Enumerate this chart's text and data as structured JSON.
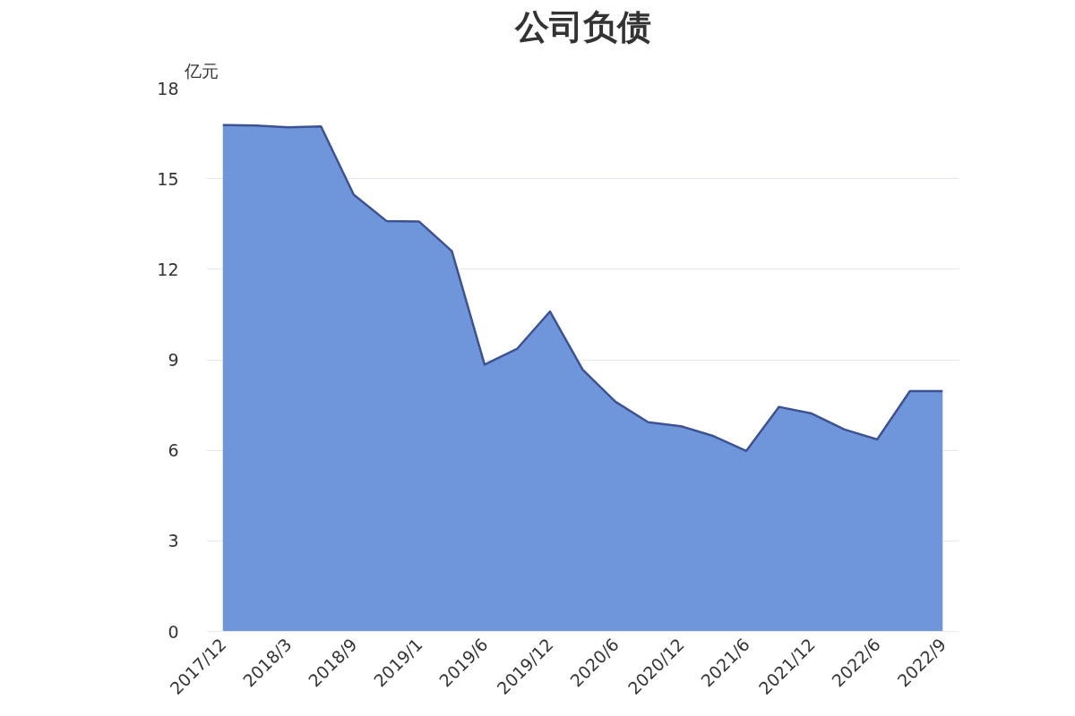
{
  "chart_data": {
    "type": "area",
    "title": "公司负债",
    "ylabel": "亿元",
    "categories": [
      "2017/12",
      null,
      "2018/3",
      null,
      "2018/9",
      null,
      "2019/1",
      null,
      "2019/6",
      null,
      "2019/12",
      null,
      "2020/6",
      null,
      "2020/12",
      null,
      "2021/6",
      null,
      "2021/12",
      null,
      "2022/6",
      null,
      "2022/9"
    ],
    "series": [
      {
        "color": "#6f96db",
        "values": [
          16.78,
          16.76,
          16.7,
          16.73,
          14.47,
          13.6,
          13.58,
          12.6,
          8.84,
          9.37,
          10.6,
          8.67,
          7.61,
          6.93,
          6.8,
          6.47,
          5.98,
          7.44,
          7.22,
          6.69,
          6.36,
          7.96,
          7.96
        ]
      }
    ],
    "ylim": [
      0,
      18
    ],
    "yticks": [
      0,
      3,
      6,
      9,
      12,
      15,
      18
    ],
    "grid": "y"
  }
}
